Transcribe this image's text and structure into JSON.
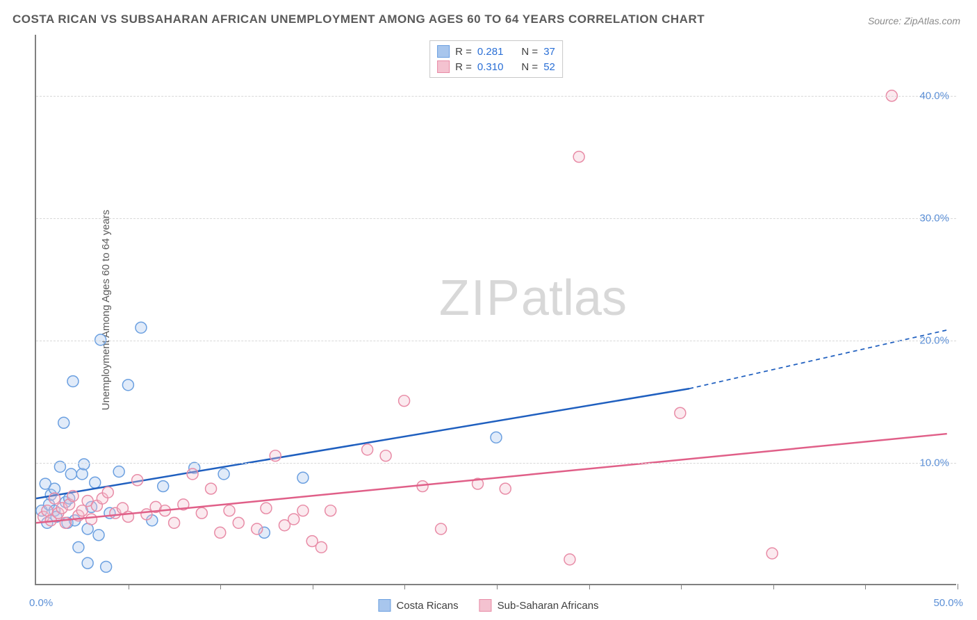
{
  "title": "COSTA RICAN VS SUBSAHARAN AFRICAN UNEMPLOYMENT AMONG AGES 60 TO 64 YEARS CORRELATION CHART",
  "source": "Source: ZipAtlas.com",
  "ylabel": "Unemployment Among Ages 60 to 64 years",
  "watermark_zip": "ZIP",
  "watermark_atlas": "atlas",
  "chart": {
    "type": "scatter",
    "xlim": [
      0,
      50
    ],
    "ylim": [
      0,
      45
    ],
    "x_tick_step": 5,
    "x_tick_labels": [
      {
        "value": 0,
        "label": "0.0%"
      },
      {
        "value": 50,
        "label": "50.0%"
      }
    ],
    "y_ticks": [
      {
        "value": 10,
        "label": "10.0%"
      },
      {
        "value": 20,
        "label": "20.0%"
      },
      {
        "value": 30,
        "label": "30.0%"
      },
      {
        "value": 40,
        "label": "40.0%"
      }
    ],
    "background_color": "#ffffff",
    "grid_color": "#d8d8d8",
    "axis_color": "#808080",
    "tick_label_color": "#5b8fd6",
    "marker_radius": 8,
    "marker_stroke_width": 1.5,
    "marker_fill_opacity": 0.35,
    "series": [
      {
        "id": "costa_ricans",
        "label": "Costa Ricans",
        "color_fill": "#a8c6ed",
        "color_stroke": "#6a9fe0",
        "trend_color": "#1f5fbf",
        "trend_width": 2.5,
        "trend_start": [
          0,
          7.0
        ],
        "trend_solid_end": [
          35.5,
          16.0
        ],
        "trend_dash_end": [
          49.5,
          20.8
        ],
        "R": "0.281",
        "N": "37",
        "points": [
          [
            0.3,
            6.0
          ],
          [
            0.5,
            8.2
          ],
          [
            0.6,
            5.0
          ],
          [
            0.7,
            6.5
          ],
          [
            0.8,
            7.3
          ],
          [
            1.0,
            6.0
          ],
          [
            1.0,
            7.8
          ],
          [
            1.1,
            5.5
          ],
          [
            1.3,
            9.6
          ],
          [
            1.5,
            13.2
          ],
          [
            1.6,
            6.7
          ],
          [
            1.7,
            5.0
          ],
          [
            1.8,
            7.0
          ],
          [
            1.9,
            9.0
          ],
          [
            2.0,
            16.6
          ],
          [
            2.1,
            5.2
          ],
          [
            2.3,
            3.0
          ],
          [
            2.5,
            9.0
          ],
          [
            2.6,
            9.8
          ],
          [
            2.8,
            4.5
          ],
          [
            2.8,
            1.7
          ],
          [
            3.0,
            6.3
          ],
          [
            3.2,
            8.3
          ],
          [
            3.4,
            4.0
          ],
          [
            3.5,
            20.0
          ],
          [
            3.8,
            1.4
          ],
          [
            4.0,
            5.8
          ],
          [
            4.5,
            9.2
          ],
          [
            5.0,
            16.3
          ],
          [
            5.7,
            21.0
          ],
          [
            6.3,
            5.2
          ],
          [
            6.9,
            8.0
          ],
          [
            8.6,
            9.5
          ],
          [
            10.2,
            9.0
          ],
          [
            12.4,
            4.2
          ],
          [
            14.5,
            8.7
          ],
          [
            25.0,
            12.0
          ]
        ]
      },
      {
        "id": "subsaharan",
        "label": "Sub-Saharan Africans",
        "color_fill": "#f4c2d0",
        "color_stroke": "#e88ba6",
        "trend_color": "#e05f88",
        "trend_width": 2.5,
        "trend_start": [
          0,
          5.0
        ],
        "trend_solid_end": [
          49.5,
          12.3
        ],
        "R": "0.310",
        "N": "52",
        "points": [
          [
            0.4,
            5.5
          ],
          [
            0.6,
            6.0
          ],
          [
            0.8,
            5.2
          ],
          [
            1.0,
            7.0
          ],
          [
            1.2,
            5.8
          ],
          [
            1.4,
            6.2
          ],
          [
            1.6,
            5.0
          ],
          [
            1.8,
            6.5
          ],
          [
            2.0,
            7.2
          ],
          [
            2.3,
            5.6
          ],
          [
            2.5,
            6.0
          ],
          [
            2.8,
            6.8
          ],
          [
            3.0,
            5.3
          ],
          [
            3.3,
            6.4
          ],
          [
            3.6,
            7.0
          ],
          [
            3.9,
            7.5
          ],
          [
            4.3,
            5.8
          ],
          [
            4.7,
            6.2
          ],
          [
            5.0,
            5.5
          ],
          [
            5.5,
            8.5
          ],
          [
            6.0,
            5.7
          ],
          [
            6.5,
            6.3
          ],
          [
            7.0,
            6.0
          ],
          [
            7.5,
            5.0
          ],
          [
            8.0,
            6.5
          ],
          [
            8.5,
            9.0
          ],
          [
            9.0,
            5.8
          ],
          [
            9.5,
            7.8
          ],
          [
            10.0,
            4.2
          ],
          [
            10.5,
            6.0
          ],
          [
            11.0,
            5.0
          ],
          [
            12.0,
            4.5
          ],
          [
            12.5,
            6.2
          ],
          [
            13.0,
            10.5
          ],
          [
            13.5,
            4.8
          ],
          [
            14.0,
            5.3
          ],
          [
            14.5,
            6.0
          ],
          [
            15.0,
            3.5
          ],
          [
            15.5,
            3.0
          ],
          [
            16.0,
            6.0
          ],
          [
            18.0,
            11.0
          ],
          [
            19.0,
            10.5
          ],
          [
            20.0,
            15.0
          ],
          [
            21.0,
            8.0
          ],
          [
            22.0,
            4.5
          ],
          [
            24.0,
            8.2
          ],
          [
            25.5,
            7.8
          ],
          [
            29.0,
            2.0
          ],
          [
            29.5,
            35.0
          ],
          [
            35.0,
            14.0
          ],
          [
            40.0,
            2.5
          ],
          [
            46.5,
            40.0
          ]
        ]
      }
    ]
  },
  "legend_top": {
    "r_label": "R =",
    "n_label": "N ="
  },
  "legend_bottom": [
    {
      "swatch_fill": "#a8c6ed",
      "swatch_stroke": "#6a9fe0",
      "label": "Costa Ricans"
    },
    {
      "swatch_fill": "#f4c2d0",
      "swatch_stroke": "#e88ba6",
      "label": "Sub-Saharan Africans"
    }
  ]
}
